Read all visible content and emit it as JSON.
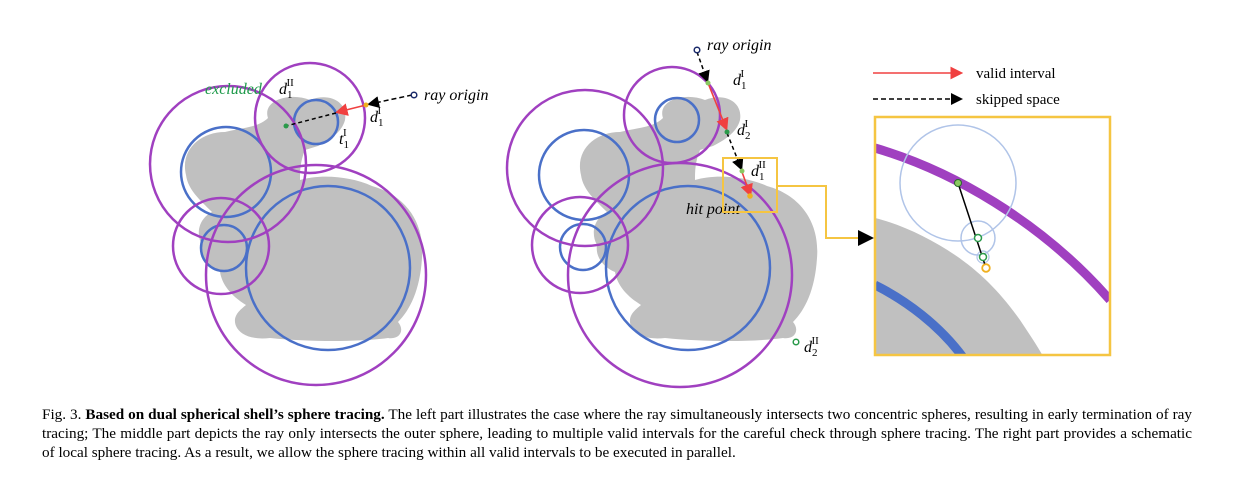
{
  "figure": {
    "left_panel": {
      "label_excluded": "excluded",
      "label_ray_origin": "ray origin",
      "label_d1_II": "d",
      "label_d1_II_sub": "1",
      "label_d1_II_sup": "II",
      "label_d1_I": "d",
      "label_d1_I_sub": "1",
      "label_d1_I_sup": "I",
      "label_t1_I": "t",
      "label_t1_I_sub": "1",
      "label_t1_I_sup": "I"
    },
    "middle_panel": {
      "label_ray_origin": "ray origin",
      "label_d1_I": "d",
      "label_d1_I_sub": "1",
      "label_d1_I_sup": "I",
      "label_d2_I": "d",
      "label_d2_I_sub": "2",
      "label_d2_I_sup": "I",
      "label_d1_II": "d",
      "label_d1_II_sub": "1",
      "label_d1_II_sup": "II",
      "label_hit_point": "hit point",
      "label_d2_II": "d",
      "label_d2_II_sub": "2",
      "label_d2_II_sup": "II"
    },
    "legend": {
      "valid_interval": "valid interval",
      "skipped_space": "skipped space"
    },
    "colors": {
      "purple": "#a040c0",
      "blue": "#4a70c8",
      "gray": "#c0c0c0",
      "red": "#f04040",
      "green": "#2a9a4a",
      "orange": "#f0b020",
      "zoom_box": "#f5c542"
    }
  },
  "caption": {
    "prefix": "Fig. 3.",
    "title": "Based on dual spherical shell’s sphere tracing.",
    "body": "The left part illustrates the case where the ray simultaneously intersects two concentric spheres, resulting in early termination of ray tracing; The middle part depicts the ray only intersects the outer sphere, leading to multiple valid intervals for the careful check through sphere tracing. The right part provides a schematic of local sphere tracing. As a result, we allow the sphere tracing within all valid intervals to be executed in parallel."
  }
}
